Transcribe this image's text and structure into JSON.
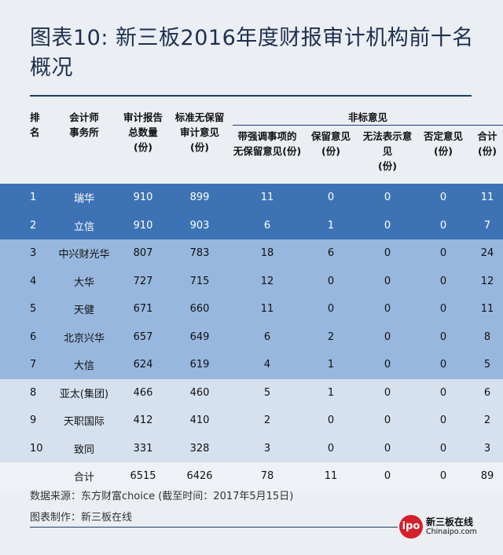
{
  "title": "图表10: 新三板2016年度财报审计机构前十名概况",
  "headers": {
    "rank": [
      "排名"
    ],
    "firm": [
      "会计师",
      "事务所"
    ],
    "total": [
      "审计报告",
      "总数量",
      "(份)"
    ],
    "standard": [
      "标准无保留",
      "审计意见",
      "(份)"
    ],
    "nonstandard": "非标意见",
    "emphasis": [
      "带强调事项的",
      "无保留意见(份)"
    ],
    "qualified": [
      "保留意见",
      "(份)"
    ],
    "disclaimer": [
      "无法表示意见",
      "(份)"
    ],
    "adverse": [
      "否定意见",
      "(份)"
    ],
    "subtotal": [
      "合计",
      "(份)"
    ]
  },
  "rows": [
    {
      "rank": "1",
      "firm": "瑞华",
      "total": "910",
      "standard": "899",
      "emphasis": "11",
      "qualified": "0",
      "disclaimer": "0",
      "adverse": "0",
      "subtotal": "11",
      "tier": "1"
    },
    {
      "rank": "2",
      "firm": "立信",
      "total": "910",
      "standard": "903",
      "emphasis": "6",
      "qualified": "1",
      "disclaimer": "0",
      "adverse": "0",
      "subtotal": "7",
      "tier": "1"
    },
    {
      "rank": "3",
      "firm": "中兴财光华",
      "total": "807",
      "standard": "783",
      "emphasis": "18",
      "qualified": "6",
      "disclaimer": "0",
      "adverse": "0",
      "subtotal": "24",
      "tier": "2"
    },
    {
      "rank": "4",
      "firm": "大华",
      "total": "727",
      "standard": "715",
      "emphasis": "12",
      "qualified": "0",
      "disclaimer": "0",
      "adverse": "0",
      "subtotal": "12",
      "tier": "2"
    },
    {
      "rank": "5",
      "firm": "天健",
      "total": "671",
      "standard": "660",
      "emphasis": "11",
      "qualified": "0",
      "disclaimer": "0",
      "adverse": "0",
      "subtotal": "11",
      "tier": "2"
    },
    {
      "rank": "6",
      "firm": "北京兴华",
      "total": "657",
      "standard": "649",
      "emphasis": "6",
      "qualified": "2",
      "disclaimer": "0",
      "adverse": "0",
      "subtotal": "8",
      "tier": "2"
    },
    {
      "rank": "7",
      "firm": "大信",
      "total": "624",
      "standard": "619",
      "emphasis": "4",
      "qualified": "1",
      "disclaimer": "0",
      "adverse": "0",
      "subtotal": "5",
      "tier": "2"
    },
    {
      "rank": "8",
      "firm": "亚太(集团)",
      "total": "466",
      "standard": "460",
      "emphasis": "5",
      "qualified": "1",
      "disclaimer": "0",
      "adverse": "0",
      "subtotal": "6",
      "tier": "3"
    },
    {
      "rank": "9",
      "firm": "天职国际",
      "total": "412",
      "standard": "410",
      "emphasis": "2",
      "qualified": "0",
      "disclaimer": "0",
      "adverse": "0",
      "subtotal": "2",
      "tier": "3"
    },
    {
      "rank": "10",
      "firm": "致同",
      "total": "331",
      "standard": "328",
      "emphasis": "3",
      "qualified": "0",
      "disclaimer": "0",
      "adverse": "0",
      "subtotal": "3",
      "tier": "3"
    },
    {
      "rank": "",
      "firm": "合计",
      "total": "6515",
      "standard": "6426",
      "emphasis": "78",
      "qualified": "11",
      "disclaimer": "0",
      "adverse": "0",
      "subtotal": "89",
      "tier": "total"
    }
  ],
  "source": "数据来源：东方财富choice (截至时间：2017年5月15日)",
  "maker": "图表制作：新三板在线",
  "logo": {
    "badge": "ipo",
    "name_cn": "新三板在线",
    "name_en": "Chinaipo.com"
  },
  "colors": {
    "tier1": "#3d73b4",
    "tier2": "#98b7de",
    "tier3": "#d5e1ef",
    "accent": "#1f3e66",
    "logo_red": "#d3202a"
  }
}
